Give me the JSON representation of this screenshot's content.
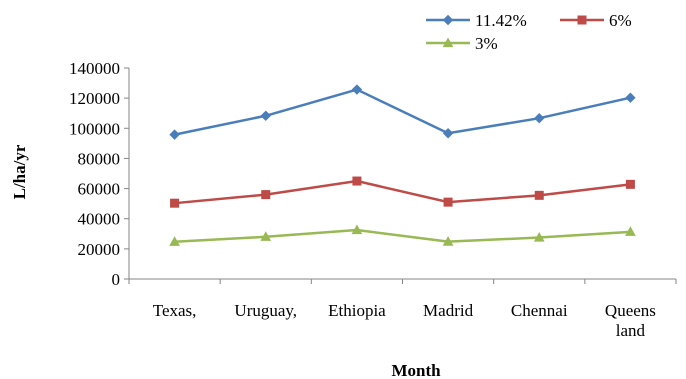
{
  "chart_data": {
    "type": "line",
    "title": "",
    "xlabel": "Month",
    "ylabel": "L/ha/yr",
    "ylim": [
      0,
      140000
    ],
    "yticks": [
      0,
      20000,
      40000,
      60000,
      80000,
      100000,
      120000,
      140000
    ],
    "ytick_labels": [
      "0",
      "20000",
      "40000",
      "60000",
      "80000",
      "100000",
      "120000",
      "140000"
    ],
    "grid": false,
    "legend_position": "top-right",
    "categories": [
      [
        "Texas,"
      ],
      [
        "Uruguay,"
      ],
      [
        "Ethiopia"
      ],
      [
        "Madrid"
      ],
      [
        "Chennai"
      ],
      [
        "Queens",
        "land"
      ]
    ],
    "series": [
      {
        "name": "11.42%",
        "color": "#4a7ebb",
        "marker": "diamond",
        "values": [
          95800,
          108300,
          125700,
          96700,
          106700,
          120300
        ]
      },
      {
        "name": "6%",
        "color": "#be4b48",
        "marker": "square",
        "values": [
          50300,
          56000,
          65000,
          51000,
          55500,
          62800
        ]
      },
      {
        "name": "3%",
        "color": "#98b954",
        "marker": "triangle",
        "values": [
          24700,
          28000,
          32500,
          24800,
          27500,
          31300
        ]
      }
    ]
  }
}
